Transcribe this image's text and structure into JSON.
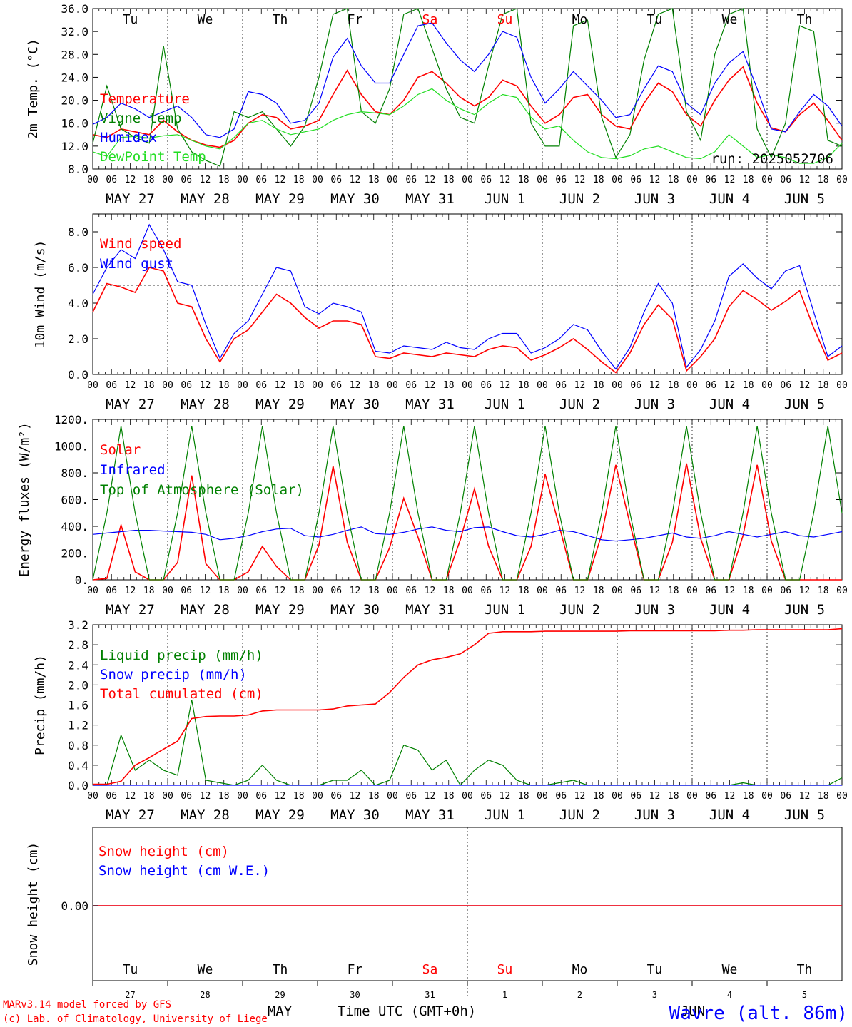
{
  "colors": {
    "red": "#ff0000",
    "green": "#008000",
    "blue": "#0000ff",
    "lime": "#22dd22",
    "black": "#000000"
  },
  "axis": {
    "hour_ticks": [
      "00",
      "06",
      "12",
      "18"
    ],
    "end_tick": "00",
    "dates": [
      "MAY 27",
      "MAY 28",
      "MAY 29",
      "MAY 30",
      "MAY 31",
      "JUN  1",
      "JUN  2",
      "JUN  3",
      "JUN  4",
      "JUN  5"
    ],
    "days_of_week": [
      "Tu",
      "We",
      "Th",
      "Fr",
      "Sa",
      "Su",
      "Mo",
      "Tu",
      "We",
      "Th"
    ],
    "weekend_day_indices": [
      4,
      5
    ],
    "day_numbers": [
      "27",
      "28",
      "29",
      "30",
      "31",
      "1",
      "2",
      "3",
      "4",
      "5"
    ],
    "month_label": "MAY",
    "month_label_2": "JUN",
    "xlabel": "Time UTC (GMT+0h)"
  },
  "footer": {
    "model": "MARv3.14 model forced by GFS",
    "credit": "(c) Lab. of Climatology, University of Liege",
    "station": "Wavre (alt. 86m)"
  },
  "chart_data": [
    {
      "type": "line",
      "panel": "temperature",
      "ylabel": "2m Temp. (°C)",
      "ylim": [
        8.0,
        36.0
      ],
      "yticks": [
        "8.0",
        "12.0",
        "16.0",
        "20.0",
        "24.0",
        "28.0",
        "32.0",
        "36.0"
      ],
      "annotation": "run: 2025052706",
      "x_hours_step": 6,
      "series": [
        {
          "name": "Temperature",
          "color": "red",
          "values": [
            14,
            13.5,
            15,
            14.5,
            14,
            16.5,
            14.5,
            13,
            12.2,
            11.8,
            13,
            16,
            17.5,
            17,
            15,
            15.5,
            16.5,
            21,
            25.2,
            21,
            18,
            17.5,
            20,
            24,
            25,
            23,
            20.5,
            19,
            20.5,
            23.5,
            22.5,
            19,
            16,
            17.5,
            20.5,
            21,
            17.5,
            15.5,
            15,
            19.5,
            23,
            21.5,
            17.5,
            15.5,
            20,
            23.5,
            25.8,
            19.5,
            15.2,
            14.5,
            17.5,
            19.5,
            16.5,
            13
          ]
        },
        {
          "name": "Vigne temp",
          "color": "green",
          "values": [
            12.5,
            22.5,
            15,
            13.5,
            12.5,
            29.5,
            15,
            11,
            9.5,
            8.5,
            18,
            17,
            18,
            15,
            12,
            15.5,
            24,
            35,
            36,
            18,
            16,
            22,
            35,
            36,
            29,
            22,
            17,
            16,
            26,
            35,
            37,
            16,
            12,
            12,
            33,
            34,
            17,
            10,
            14,
            27,
            35,
            36,
            18,
            13,
            28,
            35,
            36,
            15,
            10,
            16,
            33,
            32,
            13,
            12
          ]
        },
        {
          "name": "Humidex",
          "color": "blue",
          "values": [
            15.8,
            17,
            19.5,
            18.5,
            17,
            18,
            19,
            17,
            14,
            13.5,
            15,
            21.5,
            21,
            19.5,
            16,
            16.5,
            19.5,
            27.5,
            30.8,
            26,
            23,
            23,
            28,
            33,
            33.5,
            30,
            27,
            25,
            28,
            32,
            31,
            24,
            19.5,
            22,
            25,
            22.5,
            20,
            17,
            17.5,
            22,
            26,
            25,
            19.5,
            17.5,
            23,
            26.5,
            28.5,
            22,
            15,
            14.5,
            18,
            21,
            19,
            15.5
          ]
        },
        {
          "name": "DewPoint Temp",
          "color": "lime",
          "values": [
            11,
            10.2,
            13.5,
            13.7,
            13.4,
            13.8,
            14,
            13,
            12,
            11.5,
            13.5,
            16,
            16.5,
            15,
            14,
            14.5,
            15,
            16.5,
            17.5,
            18,
            17.8,
            17.5,
            19,
            21,
            22,
            20,
            18.5,
            17.5,
            19.5,
            21,
            20.5,
            17,
            15,
            15.5,
            13,
            11,
            10,
            9.8,
            10.3,
            11.5,
            12,
            11,
            10,
            9.8,
            11,
            14,
            12,
            10,
            10.5,
            10,
            9,
            9,
            10,
            12.5
          ]
        }
      ]
    },
    {
      "type": "line",
      "panel": "wind",
      "ylabel": "10m Wind (m/s)",
      "ylim": [
        0.0,
        9.0
      ],
      "yticks": [
        "0.0",
        "2.0",
        "4.0",
        "6.0",
        "8.0"
      ],
      "reference_line": 5.0,
      "x_hours_step": 6,
      "series": [
        {
          "name": "Wind speed",
          "color": "red",
          "values": [
            3.5,
            5.1,
            4.9,
            4.6,
            6.0,
            5.8,
            4.0,
            3.8,
            2.0,
            0.7,
            2.0,
            2.5,
            3.5,
            4.5,
            4.0,
            3.2,
            2.6,
            3.0,
            3.0,
            2.8,
            1.0,
            0.9,
            1.2,
            1.1,
            1.0,
            1.2,
            1.1,
            1.0,
            1.4,
            1.6,
            1.5,
            0.8,
            1.1,
            1.5,
            2.0,
            1.4,
            0.7,
            0.1,
            1.2,
            2.8,
            3.9,
            3.1,
            0.2,
            1.0,
            2.0,
            3.8,
            4.7,
            4.2,
            3.6,
            4.1,
            4.7,
            2.6,
            0.8,
            1.2
          ]
        },
        {
          "name": "Wind gust",
          "color": "blue",
          "values": [
            4.5,
            6.0,
            7.0,
            6.5,
            8.4,
            7.0,
            5.2,
            5.0,
            2.8,
            0.9,
            2.3,
            3.0,
            4.5,
            6.0,
            5.8,
            3.8,
            3.4,
            4.0,
            3.8,
            3.5,
            1.3,
            1.2,
            1.6,
            1.5,
            1.4,
            1.8,
            1.5,
            1.4,
            2.0,
            2.3,
            2.3,
            1.2,
            1.5,
            2.0,
            2.8,
            2.5,
            1.3,
            0.3,
            1.5,
            3.5,
            5.1,
            4.0,
            0.4,
            1.4,
            3.0,
            5.5,
            6.2,
            5.4,
            4.8,
            5.8,
            6.1,
            3.5,
            1.0,
            1.6
          ]
        }
      ]
    },
    {
      "type": "line",
      "panel": "energy",
      "ylabel": "Energy fluxes (W/m²)",
      "ylim": [
        0,
        1200
      ],
      "yticks": [
        "0.",
        "200.",
        "400.",
        "600.",
        "800.",
        "1000.",
        "1200."
      ],
      "x_hours_step": 6,
      "series": [
        {
          "name": "Solar",
          "color": "red",
          "values": [
            0,
            10,
            410,
            60,
            0,
            0,
            130,
            780,
            120,
            0,
            0,
            60,
            250,
            100,
            0,
            0,
            260,
            850,
            280,
            0,
            0,
            240,
            610,
            320,
            0,
            0,
            300,
            680,
            250,
            0,
            0,
            250,
            790,
            400,
            0,
            0,
            340,
            860,
            420,
            0,
            0,
            280,
            870,
            310,
            0,
            0,
            330,
            860,
            290,
            0,
            0,
            0,
            0,
            0
          ]
        },
        {
          "name": "Infrared",
          "color": "blue",
          "values": [
            340,
            350,
            360,
            370,
            370,
            365,
            360,
            355,
            340,
            300,
            310,
            330,
            360,
            380,
            385,
            330,
            320,
            340,
            370,
            395,
            345,
            340,
            355,
            380,
            395,
            370,
            360,
            390,
            395,
            360,
            330,
            320,
            340,
            370,
            360,
            330,
            300,
            290,
            300,
            310,
            330,
            350,
            320,
            310,
            330,
            360,
            340,
            320,
            340,
            360,
            330,
            320,
            340,
            360
          ]
        },
        {
          "name": "Top of Atmosphere (Solar)",
          "color": "green",
          "values": [
            0,
            500,
            1150,
            500,
            0,
            0,
            500,
            1150,
            500,
            0,
            0,
            500,
            1150,
            500,
            0,
            0,
            500,
            1150,
            500,
            0,
            0,
            500,
            1150,
            500,
            0,
            0,
            500,
            1150,
            500,
            0,
            0,
            500,
            1150,
            500,
            0,
            0,
            500,
            1150,
            500,
            0,
            0,
            500,
            1150,
            500,
            0,
            0,
            500,
            1150,
            500,
            0,
            0,
            500,
            1150,
            500
          ]
        }
      ]
    },
    {
      "type": "line",
      "panel": "precip",
      "ylabel": "Precip (mm/h)",
      "ylim": [
        0.0,
        3.2
      ],
      "yticks": [
        "0.0",
        "0.4",
        "0.8",
        "1.2",
        "1.6",
        "2.0",
        "2.4",
        "2.8",
        "3.2"
      ],
      "x_hours_step": 6,
      "series": [
        {
          "name": "Liquid precip (mm/h)",
          "color": "green",
          "values": [
            0,
            0,
            1.0,
            0.3,
            0.5,
            0.3,
            0.2,
            1.7,
            0.1,
            0.05,
            0.0,
            0.1,
            0.4,
            0.1,
            0.0,
            0.0,
            0.0,
            0.1,
            0.1,
            0.3,
            0.0,
            0.1,
            0.8,
            0.7,
            0.3,
            0.5,
            0.0,
            0.3,
            0.5,
            0.4,
            0.1,
            0.0,
            0.0,
            0.05,
            0.1,
            0.0,
            0.0,
            0.0,
            0.0,
            0.0,
            0.0,
            0.0,
            0.0,
            0.0,
            0.0,
            0.0,
            0.05,
            0.0,
            0.0,
            0.0,
            0.0,
            0.0,
            0.0,
            0.15
          ]
        },
        {
          "name": "Snow precip (mm/h)",
          "color": "blue",
          "values": [
            0,
            0,
            0,
            0,
            0,
            0,
            0,
            0,
            0,
            0,
            0,
            0,
            0,
            0,
            0,
            0,
            0,
            0,
            0,
            0,
            0,
            0,
            0,
            0,
            0,
            0,
            0,
            0,
            0,
            0,
            0,
            0,
            0,
            0,
            0,
            0,
            0,
            0,
            0,
            0,
            0,
            0,
            0,
            0,
            0,
            0,
            0,
            0,
            0,
            0,
            0,
            0,
            0,
            0
          ]
        },
        {
          "name": "Total cumulated (cm)",
          "color": "red",
          "values": [
            0.02,
            0.02,
            0.08,
            0.4,
            0.55,
            0.72,
            0.88,
            1.33,
            1.37,
            1.38,
            1.38,
            1.4,
            1.48,
            1.5,
            1.5,
            1.5,
            1.5,
            1.52,
            1.58,
            1.6,
            1.62,
            1.85,
            2.15,
            2.4,
            2.5,
            2.55,
            2.62,
            2.8,
            3.03,
            3.06,
            3.06,
            3.06,
            3.07,
            3.07,
            3.07,
            3.07,
            3.07,
            3.07,
            3.08,
            3.08,
            3.08,
            3.08,
            3.08,
            3.08,
            3.08,
            3.09,
            3.09,
            3.1,
            3.1,
            3.1,
            3.1,
            3.1,
            3.1,
            3.12
          ]
        }
      ]
    },
    {
      "type": "line",
      "panel": "snow",
      "ylabel": "Snow height (cm)",
      "yticks": [
        "0.00"
      ],
      "series": [
        {
          "name": "Snow height (cm)",
          "color": "red",
          "values": [
            0,
            0
          ]
        },
        {
          "name": "Snow height (cm W.E.)",
          "color": "blue",
          "values": [
            0,
            0
          ]
        }
      ]
    }
  ]
}
